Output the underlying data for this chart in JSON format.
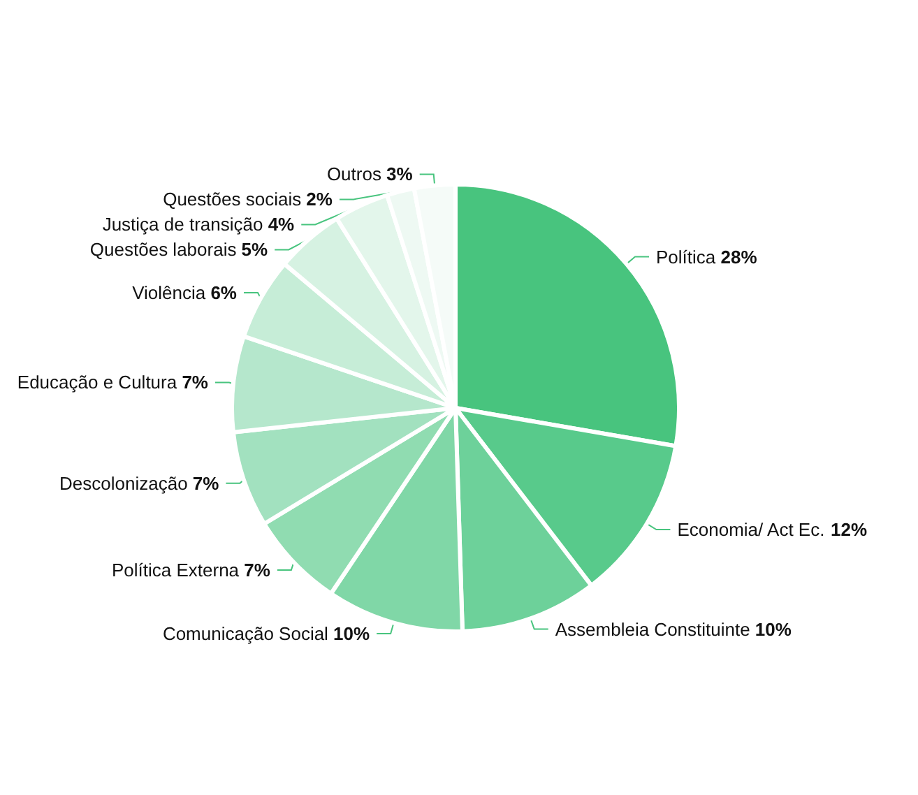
{
  "chart_data": {
    "type": "pie",
    "categories": [
      "Política",
      "Economia/ Act Ec.",
      "Assembleia Constituinte",
      "Comunicação Social",
      "Política Externa",
      "Descolonização",
      "Educação e Cultura",
      "Violência",
      "Questões laborais",
      "Justiça de transição",
      "Questões sociais",
      "Outros"
    ],
    "values": [
      28,
      12,
      10,
      10,
      7,
      7,
      7,
      6,
      5,
      4,
      2,
      3
    ],
    "value_labels": [
      "28%",
      "12%",
      "10%",
      "10%",
      "7%",
      "7%",
      "7%",
      "6%",
      "5%",
      "4%",
      "2%",
      "3%"
    ],
    "colors": [
      "#48c47e",
      "#58ca8b",
      "#6dd19a",
      "#80d7a7",
      "#90dcb1",
      "#a2e1bf",
      "#b5e7cc",
      "#c6edd7",
      "#d6f2e2",
      "#e3f6eb",
      "#eef9f3",
      "#f5fbf8"
    ]
  }
}
